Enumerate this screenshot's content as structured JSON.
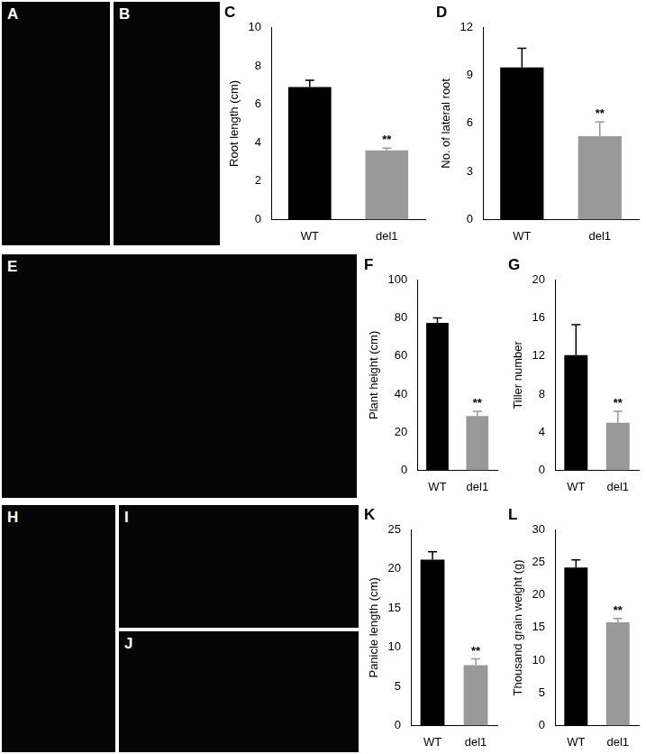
{
  "photo_panels": [
    "A",
    "B",
    "E",
    "H",
    "I",
    "J"
  ],
  "chart_data": [
    {
      "type": "bar",
      "title": "C",
      "categories": [
        "WT",
        "del1"
      ],
      "values": [
        6.9,
        3.6
      ],
      "errors": [
        0.35,
        0.12
      ],
      "colors": [
        "#000000",
        "#999999"
      ],
      "ylabel": "Root length (cm)",
      "ylim": [
        0,
        10
      ],
      "yticks": [
        0,
        2,
        4,
        6,
        8,
        10
      ],
      "grid": false,
      "annotations": [
        {
          "category": "del1",
          "text": "**"
        }
      ]
    },
    {
      "type": "bar",
      "title": "D",
      "categories": [
        "WT",
        "del1"
      ],
      "values": [
        9.5,
        5.2
      ],
      "errors": [
        1.2,
        0.9
      ],
      "colors": [
        "#000000",
        "#999999"
      ],
      "ylabel": "No. of lateral root",
      "ylim": [
        0,
        12
      ],
      "yticks": [
        0,
        3,
        6,
        9,
        12
      ],
      "grid": false,
      "annotations": [
        {
          "category": "del1",
          "text": "**"
        }
      ]
    },
    {
      "type": "bar",
      "title": "F",
      "categories": [
        "WT",
        "del1"
      ],
      "values": [
        77.5,
        28.5
      ],
      "errors": [
        2.5,
        2.5
      ],
      "colors": [
        "#000000",
        "#999999"
      ],
      "ylabel": "Plant height (cm)",
      "ylim": [
        0,
        100
      ],
      "yticks": [
        0,
        20,
        40,
        60,
        80,
        100
      ],
      "grid": false,
      "annotations": [
        {
          "category": "del1",
          "text": "**"
        }
      ]
    },
    {
      "type": "bar",
      "title": "G",
      "categories": [
        "WT",
        "del1"
      ],
      "values": [
        12.1,
        5.0
      ],
      "errors": [
        3.2,
        1.2
      ],
      "colors": [
        "#000000",
        "#999999"
      ],
      "ylabel": "Tiller number",
      "ylim": [
        0,
        20
      ],
      "yticks": [
        0,
        4,
        8,
        12,
        16,
        20
      ],
      "grid": false,
      "annotations": [
        {
          "category": "del1",
          "text": "**"
        }
      ]
    },
    {
      "type": "bar",
      "title": "K",
      "categories": [
        "WT",
        "del1"
      ],
      "values": [
        21.2,
        7.7
      ],
      "errors": [
        1.0,
        0.8
      ],
      "colors": [
        "#000000",
        "#999999"
      ],
      "ylabel": "Panicle length (cm)",
      "ylim": [
        0,
        25
      ],
      "yticks": [
        0,
        5,
        10,
        15,
        20,
        25
      ],
      "grid": false,
      "annotations": [
        {
          "category": "del1",
          "text": "**"
        }
      ]
    },
    {
      "type": "bar",
      "title": "L",
      "categories": [
        "WT",
        "del1"
      ],
      "values": [
        24.2,
        15.8
      ],
      "errors": [
        1.2,
        0.6
      ],
      "colors": [
        "#000000",
        "#999999"
      ],
      "ylabel": "Thousand grain weight (g)",
      "ylim": [
        0,
        30
      ],
      "yticks": [
        0,
        5,
        10,
        15,
        20,
        25,
        30
      ],
      "grid": false,
      "annotations": [
        {
          "category": "del1",
          "text": "**"
        }
      ]
    }
  ]
}
